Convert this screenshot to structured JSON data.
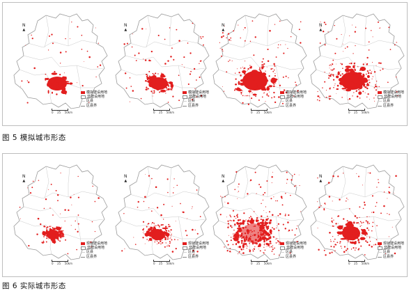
{
  "figures": [
    {
      "id": "fig5",
      "caption": "图 5 模拟城市形态",
      "legend": [
        "模拟建设用地",
        "非建设用地",
        "区县",
        "区县界"
      ],
      "colors": {
        "built": "#e21e1e",
        "boundary": "#9a9a9a"
      }
    },
    {
      "id": "fig6",
      "caption": "图 6 实际城市形态",
      "legend": [
        "现状建设用地",
        "非建设用地",
        "区县",
        "区县界"
      ],
      "colors": {
        "built": "#e21e1e",
        "boundary": "#9a9a9a"
      }
    }
  ],
  "map_labels": {
    "north": "N"
  },
  "scale_labels": [
    "0",
    "25",
    "50km"
  ],
  "icons": {
    "north_arrow": "north-arrow-icon"
  }
}
